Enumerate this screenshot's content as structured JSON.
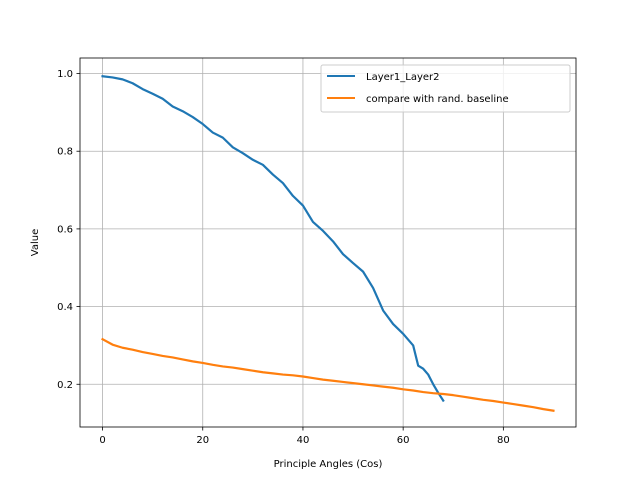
{
  "chart_data": {
    "type": "line",
    "xlabel": "Principle Angles (Cos)",
    "ylabel": "Value",
    "xlim": [
      -4.5,
      94.5
    ],
    "ylim": [
      0.09,
      1.04
    ],
    "xticks": [
      0,
      20,
      40,
      60,
      80
    ],
    "yticks": [
      0.2,
      0.4,
      0.6,
      0.8,
      1.0
    ],
    "xtick_labels": [
      "0",
      "20",
      "40",
      "60",
      "80"
    ],
    "ytick_labels": [
      "0.2",
      "0.4",
      "0.6",
      "0.8",
      "1.0"
    ],
    "grid": true,
    "legend_position": "top-right",
    "series": [
      {
        "name": "Layer1_Layer2",
        "color": "#1f77b4",
        "x": [
          0,
          2,
          4,
          6,
          8,
          10,
          12,
          14,
          16,
          18,
          20,
          22,
          24,
          26,
          28,
          30,
          32,
          34,
          36,
          38,
          40,
          42,
          44,
          46,
          48,
          50,
          52,
          54,
          56,
          58,
          60,
          62,
          63,
          64,
          65,
          66,
          67,
          68
        ],
        "y": [
          0.993,
          0.99,
          0.985,
          0.975,
          0.96,
          0.948,
          0.935,
          0.915,
          0.903,
          0.888,
          0.87,
          0.848,
          0.835,
          0.81,
          0.795,
          0.778,
          0.765,
          0.74,
          0.718,
          0.685,
          0.66,
          0.618,
          0.595,
          0.568,
          0.535,
          0.512,
          0.49,
          0.448,
          0.39,
          0.355,
          0.33,
          0.3,
          0.248,
          0.24,
          0.225,
          0.2,
          0.178,
          0.158
        ]
      },
      {
        "name": "compare with rand. baseline",
        "color": "#ff7f0e",
        "x": [
          0,
          2,
          4,
          6,
          8,
          10,
          12,
          14,
          16,
          18,
          20,
          22,
          24,
          26,
          28,
          30,
          32,
          34,
          36,
          38,
          40,
          42,
          44,
          46,
          48,
          50,
          52,
          54,
          56,
          58,
          60,
          62,
          64,
          66,
          68,
          70,
          72,
          74,
          76,
          78,
          80,
          82,
          84,
          86,
          88,
          90
        ],
        "y": [
          0.316,
          0.302,
          0.294,
          0.289,
          0.283,
          0.278,
          0.273,
          0.269,
          0.264,
          0.259,
          0.255,
          0.25,
          0.246,
          0.243,
          0.239,
          0.235,
          0.231,
          0.228,
          0.225,
          0.223,
          0.22,
          0.216,
          0.212,
          0.209,
          0.206,
          0.203,
          0.2,
          0.197,
          0.194,
          0.191,
          0.187,
          0.184,
          0.18,
          0.177,
          0.175,
          0.172,
          0.168,
          0.164,
          0.16,
          0.157,
          0.153,
          0.149,
          0.145,
          0.141,
          0.136,
          0.132
        ]
      }
    ]
  }
}
